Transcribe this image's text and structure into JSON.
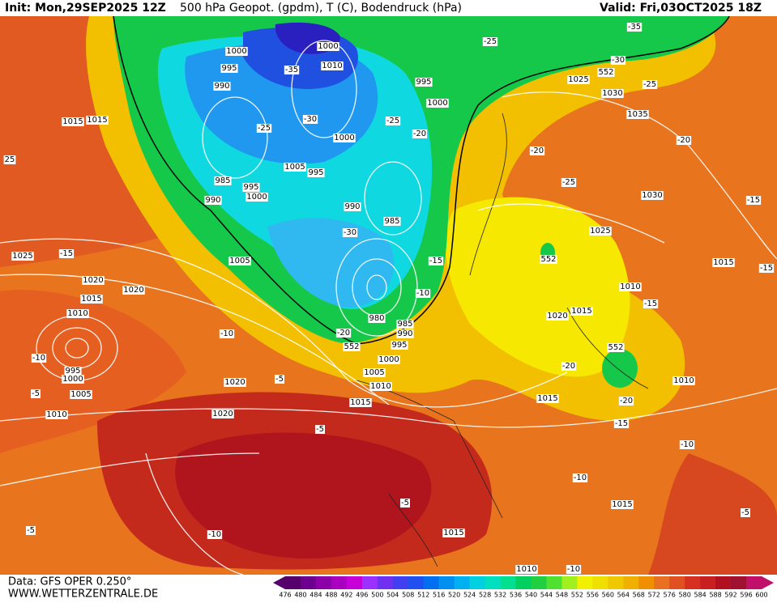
{
  "header": {
    "init": "Init: Mon,29SEP2025 12Z",
    "title": "500 hPa Geopot. (gpdm), T (C), Bodendruck (hPa)",
    "valid": "Valid: Fri,03OCT2025 18Z"
  },
  "footer": {
    "data": "Data: GFS OPER 0.250°",
    "site": "WWW.WETTERZENTRALE.DE"
  },
  "colorbar": {
    "ticks": [
      476,
      480,
      484,
      488,
      492,
      496,
      500,
      504,
      508,
      512,
      516,
      520,
      524,
      528,
      532,
      536,
      540,
      544,
      548,
      552,
      556,
      560,
      564,
      568,
      572,
      576,
      580,
      584,
      588,
      592,
      596,
      600
    ],
    "colors": [
      "#56006b",
      "#6e0090",
      "#8c00a8",
      "#aa00c0",
      "#c800d8",
      "#9b30ff",
      "#7030f0",
      "#4040f0",
      "#2050f0",
      "#0070f0",
      "#0090f0",
      "#00b0f0",
      "#00d0e0",
      "#00e0c0",
      "#00e090",
      "#00d060",
      "#20d040",
      "#50e030",
      "#a0f020",
      "#f0f000",
      "#f0e000",
      "#f0c800",
      "#f0b000",
      "#f09000",
      "#e87020",
      "#e05020",
      "#d83020",
      "#c82020",
      "#b01020",
      "#a01030",
      "#c0106a"
    ]
  },
  "map_labels": [
    "1015",
    "1015",
    "25",
    "1025",
    "-15",
    "1020",
    "1020",
    "1015",
    "1010",
    "1005",
    "-10",
    "1020",
    "-5",
    "1005",
    "1010",
    "1020",
    "-5",
    "1015",
    "1010",
    "1005",
    "1000",
    "995",
    "990",
    "985",
    "980",
    "552",
    "-20",
    "-10",
    "-15",
    "985",
    "990",
    "-30",
    "1005",
    "995",
    "995",
    "1000",
    "985",
    "990",
    "-25",
    "-30",
    "1000",
    "-25",
    "-20",
    "995",
    "1000",
    "1000",
    "995",
    "990",
    "-35",
    "1000",
    "1010",
    "-25",
    "-35",
    "-30",
    "552",
    "1025",
    "-25",
    "1030",
    "1035",
    "-20",
    "-20",
    "-25",
    "1030",
    "-15",
    "1025",
    "552",
    "1015",
    "-15",
    "1010",
    "-15",
    "1020",
    "1015",
    "552",
    "-20",
    "1015",
    "-20",
    "1010",
    "-15",
    "-10",
    "-10",
    "1015",
    "-5",
    "1015",
    "-10",
    "-5",
    "-10",
    "1010",
    "-5",
    "-10",
    "995",
    "1000",
    "-5"
  ]
}
